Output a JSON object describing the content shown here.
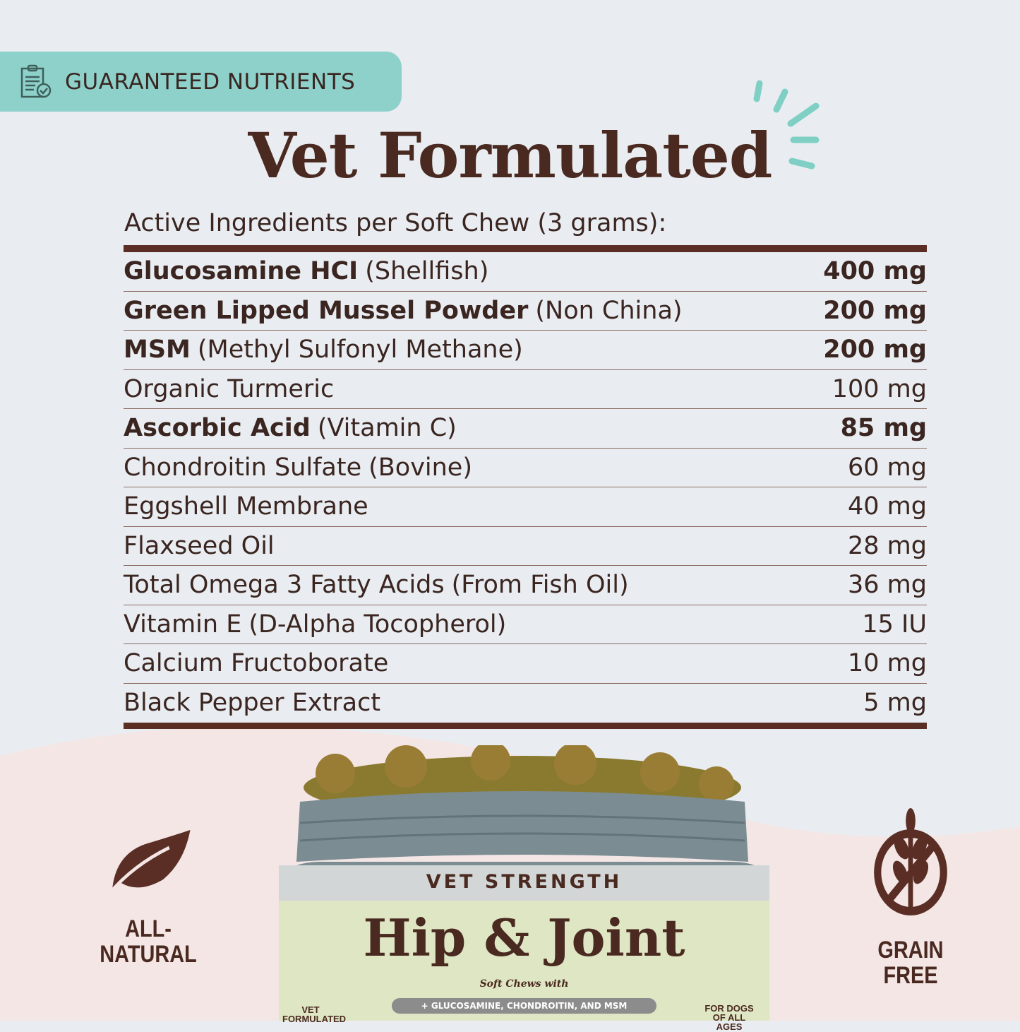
{
  "badge": {
    "label": "GUARANTEED NUTRIENTS",
    "icon": "clipboard-check-icon"
  },
  "title": "Vet Formulated",
  "subtitle": "Active Ingredients per Soft Chew (3 grams):",
  "ingredients": [
    {
      "name": "Glucosamine HCI",
      "note": "(Shellfish)",
      "amount": "400 mg",
      "bold": true
    },
    {
      "name": "Green Lipped Mussel Powder",
      "note": "(Non China)",
      "amount": "200 mg",
      "bold": true
    },
    {
      "name": "MSM",
      "note": "(Methyl Sulfonyl Methane)",
      "amount": "200 mg",
      "bold": true
    },
    {
      "name": "Organic Turmeric",
      "note": "",
      "amount": "100 mg",
      "bold": false
    },
    {
      "name": "Ascorbic Acid",
      "note": "(Vitamin C)",
      "amount": "85 mg",
      "bold": true
    },
    {
      "name": "Chondroitin Sulfate",
      "note": "(Bovine)",
      "amount": "60 mg",
      "bold": false
    },
    {
      "name": "Eggshell Membrane",
      "note": "",
      "amount": "40 mg",
      "bold": false
    },
    {
      "name": "Flaxseed Oil",
      "note": "",
      "amount": "28 mg",
      "bold": false
    },
    {
      "name": "Total Omega 3 Fatty Acids",
      "note": "(From Fish Oil)",
      "amount": "36 mg",
      "bold": false
    },
    {
      "name": "Vitamin E",
      "note": "(D-Alpha Tocopherol)",
      "amount": "15 IU",
      "bold": false
    },
    {
      "name": "Calcium Fructoborate",
      "note": "",
      "amount": "10 mg",
      "bold": false
    },
    {
      "name": "Black Pepper Extract",
      "note": "",
      "amount": "5 mg",
      "bold": false
    }
  ],
  "features": {
    "left": {
      "line1": "ALL-",
      "line2": "NATURAL",
      "icon": "leaf-icon"
    },
    "right": {
      "label": "GRAIN FREE",
      "icon": "no-grain-icon"
    }
  },
  "jar": {
    "top": "VET STRENGTH",
    "name": "Hip & Joint",
    "tagline": "Soft Chews with",
    "pill": "+ GLUCOSAMINE, CHONDROITIN, AND MSM",
    "left_badge": "VET FORMULATED",
    "right_badge": "FOR DOGS OF ALL AGES"
  },
  "colors": {
    "brown": "#4a2a20",
    "teal": "#8ed1cb",
    "background": "#e9edf1",
    "pink": "#f3e6e5",
    "label": "#dfe6c4"
  }
}
